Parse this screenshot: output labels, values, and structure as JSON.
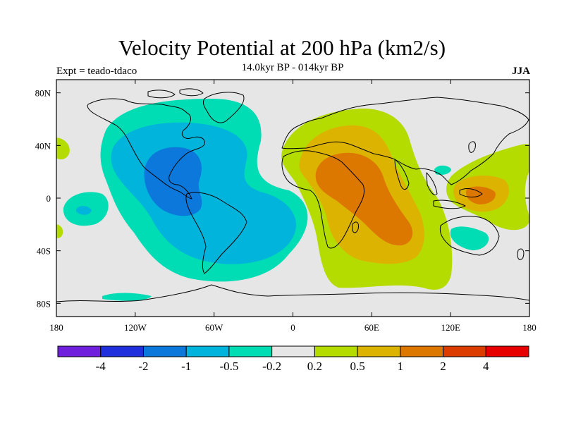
{
  "title": "Velocity Potential at 200 hPa (km2/s)",
  "subtitle": "14.0kyr BP - 014kyr BP",
  "left_label": "Expt = teado-tdaco",
  "right_label": "JJA",
  "map": {
    "projection": "cylindrical-equidistant",
    "background_color": "#e6e6e6",
    "coastline_color": "#000000",
    "lon_ticks": [
      {
        "value": -180,
        "label": "180"
      },
      {
        "value": -120,
        "label": "120W"
      },
      {
        "value": -60,
        "label": "60W"
      },
      {
        "value": 0,
        "label": "0"
      },
      {
        "value": 60,
        "label": "60E"
      },
      {
        "value": 120,
        "label": "120E"
      },
      {
        "value": 180,
        "label": "180"
      }
    ],
    "lat_ticks": [
      {
        "value": 80,
        "label": "80N"
      },
      {
        "value": 40,
        "label": "40N"
      },
      {
        "value": 0,
        "label": "0"
      },
      {
        "value": -40,
        "label": "40S"
      },
      {
        "value": -80,
        "label": "80S"
      }
    ],
    "lon_range": [
      -180,
      180
    ],
    "lat_range": [
      -90,
      90
    ]
  },
  "colorbar": {
    "levels": [
      "-4",
      "-2",
      "-1",
      "-0.5",
      "-0.2",
      "0.2",
      "0.5",
      "1",
      "2",
      "4"
    ],
    "colors": [
      "#7020dc",
      "#2030dc",
      "#0c78dc",
      "#00b4dc",
      "#00dcb4",
      "#e6e6e6",
      "#b4dc00",
      "#dcb400",
      "#dc7800",
      "#dc3c00",
      "#e60000"
    ]
  }
}
